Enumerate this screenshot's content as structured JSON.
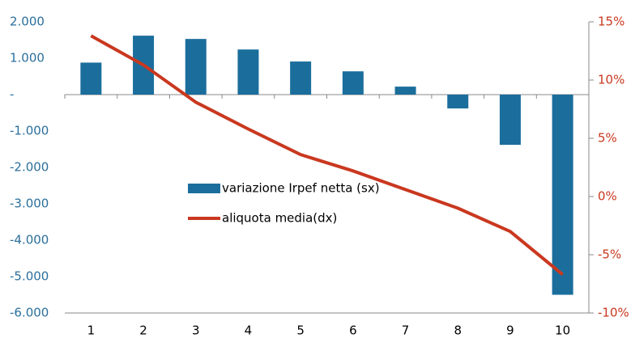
{
  "chart_data": {
    "type": "bar",
    "categories": [
      "1",
      "2",
      "3",
      "4",
      "5",
      "6",
      "7",
      "8",
      "9",
      "10"
    ],
    "series": [
      {
        "name": "variazione Irpef netta  (sx)",
        "type": "bar",
        "color": "#1b6e9c",
        "values": [
          880,
          1620,
          1530,
          1240,
          910,
          640,
          220,
          -380,
          -1380,
          -5500
        ]
      },
      {
        "name": "aliquota media(dx)",
        "type": "line",
        "axis": "y2",
        "color": "#c9381f",
        "values": [
          13.8,
          11.3,
          8.1,
          5.8,
          3.6,
          2.2,
          0.6,
          -1.0,
          -3.0,
          -6.7
        ]
      }
    ],
    "ylim": [
      -6000,
      2000
    ],
    "yticks": [
      {
        "value": 2000,
        "label": "2.000"
      },
      {
        "value": 1000,
        "label": "1.000"
      },
      {
        "value": 0,
        "label": "-"
      },
      {
        "value": -1000,
        "label": "-1.000"
      },
      {
        "value": -2000,
        "label": "-2.000"
      },
      {
        "value": -3000,
        "label": "-3.000"
      },
      {
        "value": -4000,
        "label": "-4.000"
      },
      {
        "value": -5000,
        "label": "-5.000"
      },
      {
        "value": -6000,
        "label": "-6.000"
      }
    ],
    "y2lim": [
      -10,
      15
    ],
    "y2ticks": [
      {
        "value": 15,
        "label": "15%"
      },
      {
        "value": 10,
        "label": "10%"
      },
      {
        "value": 5,
        "label": "5%"
      },
      {
        "value": 0,
        "label": "0%"
      },
      {
        "value": -5,
        "label": "-5%"
      },
      {
        "value": -10,
        "label": "-10%"
      }
    ],
    "left_axis_color": "#2b6f9c",
    "right_axis_color": "#c9381f"
  }
}
